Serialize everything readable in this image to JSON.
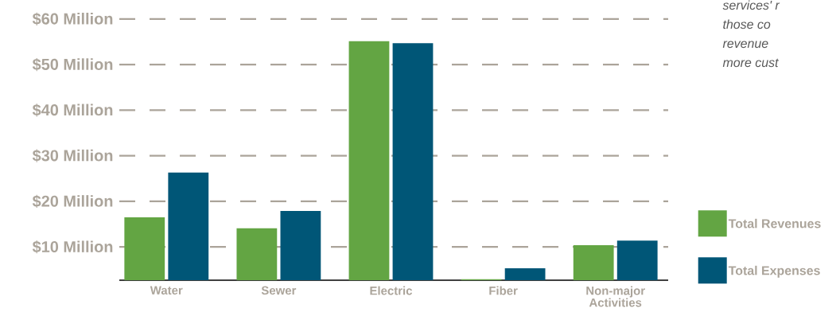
{
  "chart_data": {
    "type": "bar",
    "categories": [
      "Water",
      "Sewer",
      "Electric",
      "Fiber",
      "Non-major Activities"
    ],
    "series": [
      {
        "name": "Total Revenues",
        "color": "#63a543",
        "values": [
          16.5,
          14.1,
          55.1,
          2.9,
          10.4
        ]
      },
      {
        "name": "Total Expenses",
        "color": "#005677",
        "values": [
          26.3,
          17.9,
          54.7,
          5.3,
          11.4
        ]
      }
    ],
    "ylim": [
      2.7,
      60
    ],
    "yticks": [
      {
        "value": 10,
        "label": "$10 Million"
      },
      {
        "value": 20,
        "label": "$20 Million"
      },
      {
        "value": 30,
        "label": "$30 Million"
      },
      {
        "value": 40,
        "label": "$40 Million"
      },
      {
        "value": 50,
        "label": "$50 Million"
      },
      {
        "value": 60,
        "label": "$60 Million"
      }
    ],
    "grid": "y",
    "legend": "right",
    "annotations": [
      "services' r",
      "those co",
      "revenue",
      "more cust"
    ]
  }
}
